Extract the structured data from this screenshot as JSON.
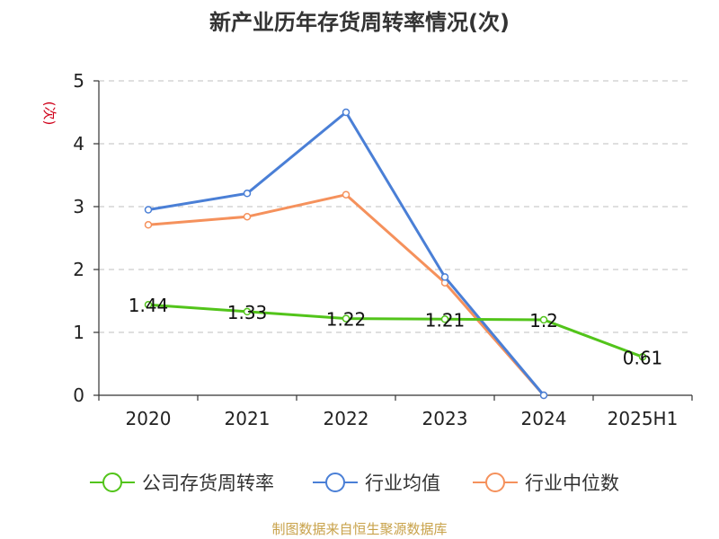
{
  "chart_data": {
    "type": "line",
    "title": "新产业历年存货周转率情况(次)",
    "ylabel": "(次)",
    "categories": [
      "2020",
      "2021",
      "2022",
      "2023",
      "2024",
      "2025H1"
    ],
    "ylim": [
      0,
      5
    ],
    "yticks": [
      0,
      1,
      2,
      3,
      4,
      5
    ],
    "grid": true,
    "legend_position": "bottom",
    "series": [
      {
        "name": "公司存货周转率",
        "color": "#52c41a",
        "values": [
          1.44,
          1.33,
          1.22,
          1.21,
          1.2,
          0.61
        ],
        "labels": [
          "1.44",
          "1.33",
          "1.22",
          "1.21",
          "1.2",
          "0.61"
        ]
      },
      {
        "name": "行业均值",
        "color": "#4a7fd6",
        "values": [
          2.95,
          3.21,
          4.5,
          1.88,
          0.0,
          null
        ]
      },
      {
        "name": "行业中位数",
        "color": "#f5915c",
        "values": [
          2.71,
          2.84,
          3.19,
          1.79,
          0.0,
          null
        ]
      }
    ]
  },
  "colors": {
    "axis": "#333333",
    "grid": "#cccccc",
    "ylabel": "#d0021b",
    "source": "#c8a24a"
  },
  "source_text": "制图数据来自恒生聚源数据库"
}
